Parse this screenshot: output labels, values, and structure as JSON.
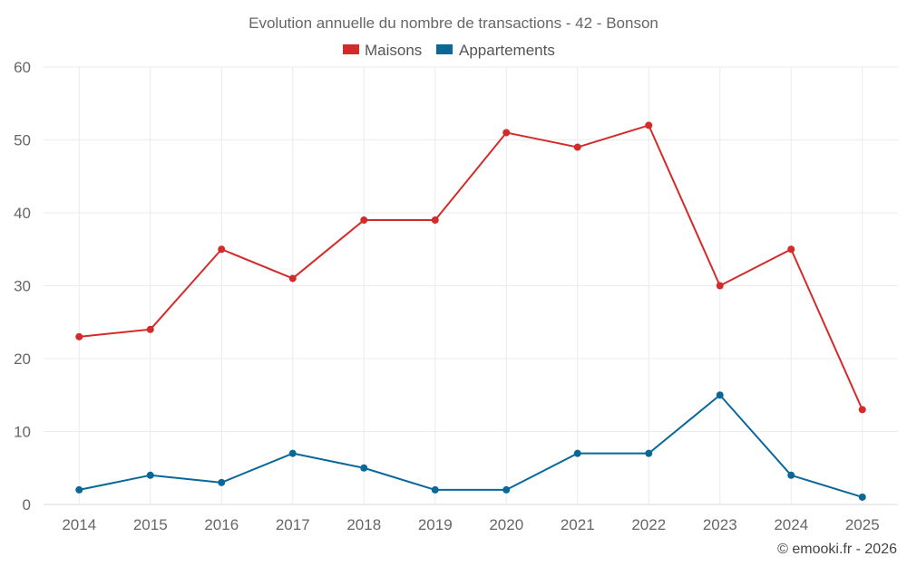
{
  "chart_data": {
    "type": "line",
    "title": "Evolution annuelle du nombre de transactions - 42 - Bonson",
    "categories": [
      "2014",
      "2015",
      "2016",
      "2017",
      "2018",
      "2019",
      "2020",
      "2021",
      "2022",
      "2023",
      "2024",
      "2025"
    ],
    "series": [
      {
        "name": "Maisons",
        "color": "#d42a2a",
        "values": [
          23,
          24,
          35,
          31,
          39,
          39,
          51,
          49,
          52,
          30,
          35,
          13
        ]
      },
      {
        "name": "Appartements",
        "color": "#0a679a",
        "values": [
          2,
          4,
          3,
          7,
          5,
          2,
          2,
          7,
          7,
          15,
          4,
          1
        ]
      }
    ],
    "ylim": [
      0,
      60
    ],
    "yticks": [
      0,
      10,
      20,
      30,
      40,
      50,
      60
    ],
    "xlabel": "",
    "ylabel": "",
    "legend_position": "top-center",
    "grid": true
  },
  "credit": "© emooki.fr - 2026"
}
